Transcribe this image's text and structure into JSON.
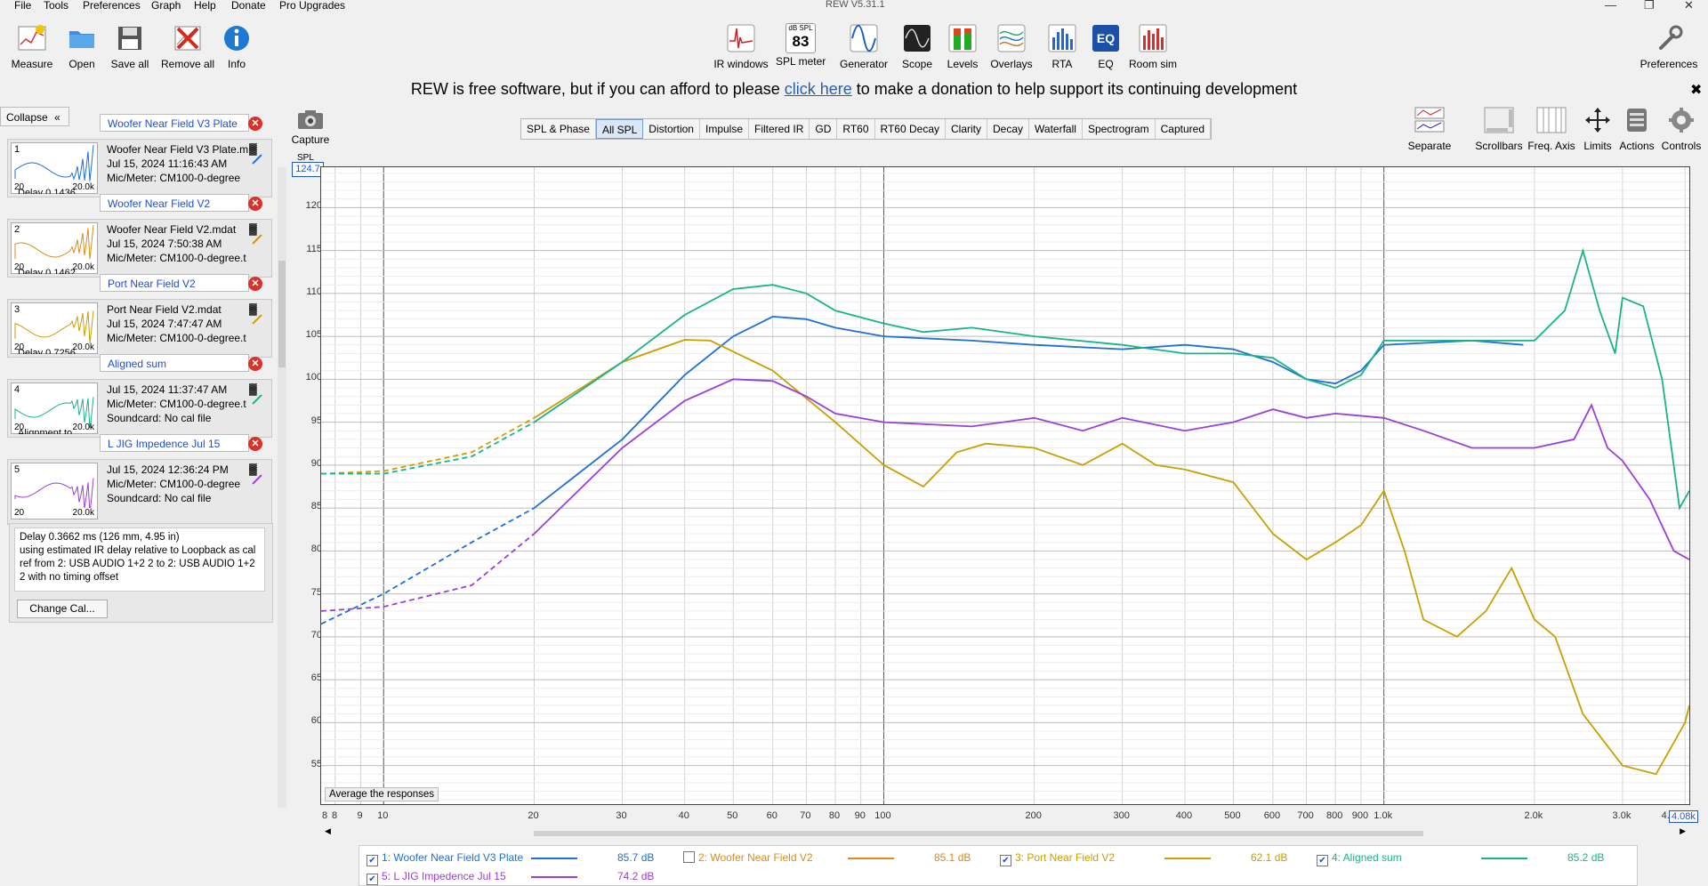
{
  "window": {
    "title": "REW V5.31.1"
  },
  "menu": [
    "File",
    "Tools",
    "Preferences",
    "Graph",
    "Help",
    "Donate",
    "Pro Upgrades"
  ],
  "toolbar_left": [
    {
      "label": "Measure",
      "icon": "measure-icon"
    },
    {
      "label": "Open",
      "icon": "folder-icon"
    },
    {
      "label": "Save all",
      "icon": "save-icon"
    },
    {
      "label": "Remove all",
      "icon": "remove-all-icon"
    },
    {
      "label": "Info",
      "icon": "info-icon"
    }
  ],
  "toolbar_center": [
    {
      "label": "IR windows",
      "icon": "ir-windows-icon"
    },
    {
      "label": "SPL meter",
      "icon": "spl-meter-icon",
      "badge_top": "dB SPL",
      "badge_value": "83"
    },
    {
      "label": "Generator",
      "icon": "generator-icon"
    },
    {
      "label": "Scope",
      "icon": "scope-icon"
    },
    {
      "label": "Levels",
      "icon": "levels-icon"
    },
    {
      "label": "Overlays",
      "icon": "overlays-icon"
    },
    {
      "label": "RTA",
      "icon": "rta-icon"
    },
    {
      "label": "EQ",
      "icon": "eq-icon"
    },
    {
      "label": "Room sim",
      "icon": "room-sim-icon"
    }
  ],
  "toolbar_right": {
    "label": "Preferences",
    "icon": "wrench-icon"
  },
  "banner": {
    "before": "REW is free software, but if you can afford to please ",
    "link": "click here",
    "after": " to make a donation to help support its continuing development"
  },
  "capture": {
    "label": "Capture"
  },
  "collapse": {
    "label": "Collapse",
    "arrows": "«"
  },
  "tabs": [
    "SPL & Phase",
    "All SPL",
    "Distortion",
    "Impulse",
    "Filtered IR",
    "GD",
    "RT60",
    "RT60 Decay",
    "Clarity",
    "Decay",
    "Waterfall",
    "Spectrogram",
    "Captured"
  ],
  "active_tab": "All SPL",
  "right_tools": [
    {
      "label": "Separate",
      "icon": "separate-icon"
    },
    {
      "label": "Scrollbars",
      "icon": "scrollbars-icon"
    },
    {
      "label": "Freq. Axis",
      "icon": "freq-axis-icon"
    },
    {
      "label": "Limits",
      "icon": "limits-icon"
    },
    {
      "label": "Actions",
      "icon": "actions-icon"
    },
    {
      "label": "Controls",
      "icon": "controls-icon"
    }
  ],
  "measurements": [
    {
      "num": "1",
      "name": "Woofer Near Field V3 Plate",
      "line1": "Woofer Near Field V3 Plate.m",
      "line2": "Jul 15, 2024 11:16:43 AM",
      "line3": "Mic/Meter: CM100-0-degree",
      "line4": "Delay 0.1436",
      "color": "#1f6fd6",
      "thumb_x": "20.0k"
    },
    {
      "num": "2",
      "name": "Woofer Near Field V2",
      "line1": "Woofer Near Field V2.mdat",
      "line2": "Jul 15, 2024 7:50:38 AM",
      "line3": "Mic/Meter: CM100-0-degree.t",
      "line4": "Delay 0.1462",
      "color": "#d98c1a",
      "thumb_x": "20.0k"
    },
    {
      "num": "3",
      "name": "Port Near Field V2",
      "line1": "Port Near Field V2.mdat",
      "line2": "Jul 15, 2024 7:47:47 AM",
      "line3": "Mic/Meter: CM100-0-degree.t",
      "line4": "Delay 0.7256",
      "color": "#c9a000",
      "thumb_x": "20.0k"
    },
    {
      "num": "4",
      "name": "Aligned sum",
      "line1": "Jul 15, 2024 11:37:47 AM",
      "line2": "Mic/Meter: CM100-0-degree.t",
      "line3": "Soundcard: No cal file",
      "line4": "Alignment to",
      "color": "#19b38a",
      "thumb_x": "20.0k"
    },
    {
      "num": "5",
      "name": "L JIG Impedence Jul 15",
      "line1": "Jul 15, 2024 12:36:24 PM",
      "line2": "Mic/Meter: CM100-0-degree",
      "line3": "Soundcard: No cal file",
      "line4": "",
      "color": "#9b3fd6",
      "thumb_x": "20.0k"
    }
  ],
  "thumb_x_left": "20",
  "selected_info": {
    "text": "Delay 0.3662 ms (126 mm, 4.95 in)\nusing estimated IR delay relative to Loopback as cal ref from 2: USB AUDIO 1+2 2 to 2: USB AUDIO 1+2 2 with no timing offset",
    "button": "Change Cal..."
  },
  "graph": {
    "y_unit": "SPL",
    "y_top_value": "124.7",
    "y_ticks": [
      "120",
      "115",
      "110",
      "105",
      "100",
      "95",
      "90",
      "85",
      "80",
      "75",
      "70",
      "65",
      "60",
      "55"
    ],
    "x_ticks": [
      "8",
      "8",
      "9",
      "10",
      "20",
      "30",
      "40",
      "50",
      "60",
      "70",
      "80",
      "90",
      "100",
      "200",
      "300",
      "400",
      "500",
      "600",
      "700",
      "800",
      "900",
      "1.0k",
      "2.0k",
      "3.0k",
      "4.0k"
    ],
    "x_end_value": "4.08k",
    "average_button": "Average the responses"
  },
  "chart_data": {
    "type": "line",
    "xlabel": "",
    "ylabel": "SPL",
    "xscale": "log",
    "xlim": [
      7.5,
      4080
    ],
    "ylim": [
      50.5,
      124.7
    ],
    "grid": true,
    "series": [
      {
        "name": "1: Woofer Near Field V3 Plate",
        "color": "#1f6fd6",
        "points": [
          [
            7.5,
            71.5
          ],
          [
            10,
            75
          ],
          [
            15,
            81
          ],
          [
            20,
            85
          ],
          [
            30,
            93
          ],
          [
            40,
            100.5
          ],
          [
            50,
            105
          ],
          [
            60,
            107.3
          ],
          [
            70,
            107
          ],
          [
            80,
            106
          ],
          [
            100,
            105
          ],
          [
            150,
            104.5
          ],
          [
            200,
            104
          ],
          [
            300,
            103.5
          ],
          [
            400,
            104
          ],
          [
            500,
            103.5
          ],
          [
            600,
            102
          ],
          [
            700,
            100
          ],
          [
            800,
            99.5
          ],
          [
            900,
            101
          ],
          [
            1000,
            104
          ],
          [
            1500,
            104.5
          ],
          [
            1900,
            104
          ]
        ]
      },
      {
        "name": "3: Port Near Field V2",
        "color": "#c9a000",
        "points": [
          [
            7.5,
            89
          ],
          [
            10,
            89.3
          ],
          [
            15,
            91.5
          ],
          [
            20,
            95.5
          ],
          [
            30,
            102
          ],
          [
            40,
            104.6
          ],
          [
            45,
            104.5
          ],
          [
            60,
            101
          ],
          [
            80,
            95
          ],
          [
            100,
            90
          ],
          [
            120,
            87.5
          ],
          [
            140,
            91.5
          ],
          [
            160,
            92.5
          ],
          [
            200,
            92
          ],
          [
            250,
            90
          ],
          [
            300,
            92.5
          ],
          [
            350,
            90
          ],
          [
            400,
            89.5
          ],
          [
            500,
            88
          ],
          [
            600,
            82
          ],
          [
            700,
            79
          ],
          [
            800,
            81
          ],
          [
            900,
            83
          ],
          [
            1000,
            87
          ],
          [
            1100,
            80
          ],
          [
            1200,
            72
          ],
          [
            1400,
            70
          ],
          [
            1600,
            73
          ],
          [
            1800,
            78
          ],
          [
            2000,
            72
          ],
          [
            2200,
            70
          ],
          [
            2500,
            61
          ],
          [
            3000,
            55
          ],
          [
            3500,
            54
          ],
          [
            4000,
            60
          ],
          [
            4080,
            62
          ]
        ]
      },
      {
        "name": "4: Aligned sum",
        "color": "#19b38a",
        "points": [
          [
            7.5,
            89
          ],
          [
            10,
            89
          ],
          [
            15,
            91
          ],
          [
            20,
            95
          ],
          [
            30,
            102
          ],
          [
            40,
            107.5
          ],
          [
            50,
            110.5
          ],
          [
            60,
            111
          ],
          [
            70,
            110
          ],
          [
            80,
            108
          ],
          [
            100,
            106.5
          ],
          [
            120,
            105.5
          ],
          [
            150,
            106
          ],
          [
            200,
            105
          ],
          [
            300,
            104
          ],
          [
            400,
            103
          ],
          [
            500,
            103
          ],
          [
            600,
            102.5
          ],
          [
            700,
            100
          ],
          [
            800,
            99
          ],
          [
            900,
            100.5
          ],
          [
            1000,
            104.5
          ],
          [
            1500,
            104.5
          ],
          [
            2000,
            104.5
          ],
          [
            2300,
            108
          ],
          [
            2500,
            115
          ],
          [
            2700,
            108
          ],
          [
            2900,
            103
          ],
          [
            3000,
            109.5
          ],
          [
            3300,
            108.5
          ],
          [
            3600,
            100
          ],
          [
            3900,
            85
          ],
          [
            4080,
            87
          ]
        ]
      },
      {
        "name": "5: L JIG Impedence Jul 15",
        "color": "#9b3fd6",
        "points": [
          [
            7.5,
            73
          ],
          [
            10,
            73.5
          ],
          [
            15,
            76
          ],
          [
            20,
            82
          ],
          [
            30,
            92
          ],
          [
            40,
            97.5
          ],
          [
            50,
            100
          ],
          [
            60,
            99.8
          ],
          [
            70,
            98
          ],
          [
            80,
            96
          ],
          [
            100,
            95
          ],
          [
            150,
            94.5
          ],
          [
            200,
            95.5
          ],
          [
            250,
            94
          ],
          [
            300,
            95.5
          ],
          [
            400,
            94
          ],
          [
            500,
            95
          ],
          [
            600,
            96.5
          ],
          [
            700,
            95.5
          ],
          [
            800,
            96
          ],
          [
            1000,
            95.5
          ],
          [
            1200,
            94
          ],
          [
            1500,
            92
          ],
          [
            2000,
            92
          ],
          [
            2400,
            93
          ],
          [
            2600,
            97
          ],
          [
            2800,
            92
          ],
          [
            3000,
            90.5
          ],
          [
            3400,
            86
          ],
          [
            3800,
            80
          ],
          [
            4080,
            79
          ]
        ]
      }
    ]
  },
  "legend": [
    {
      "checked": true,
      "label": "1: Woofer Near Field V3 Plate",
      "value": "85.7 dB",
      "color": "#1f6fd6"
    },
    {
      "checked": false,
      "label": "2: Woofer Near Field V2",
      "value": "85.1 dB",
      "color": "#d98c1a"
    },
    {
      "checked": true,
      "label": "3: Port Near Field V2",
      "value": "62.1 dB",
      "color": "#c9a000"
    },
    {
      "checked": true,
      "label": "4: Aligned sum",
      "value": "85.2 dB",
      "color": "#19b38a"
    },
    {
      "checked": true,
      "label": "5: L JIG Impedence Jul 15",
      "value": "74.2 dB",
      "color": "#9b3fd6"
    }
  ]
}
